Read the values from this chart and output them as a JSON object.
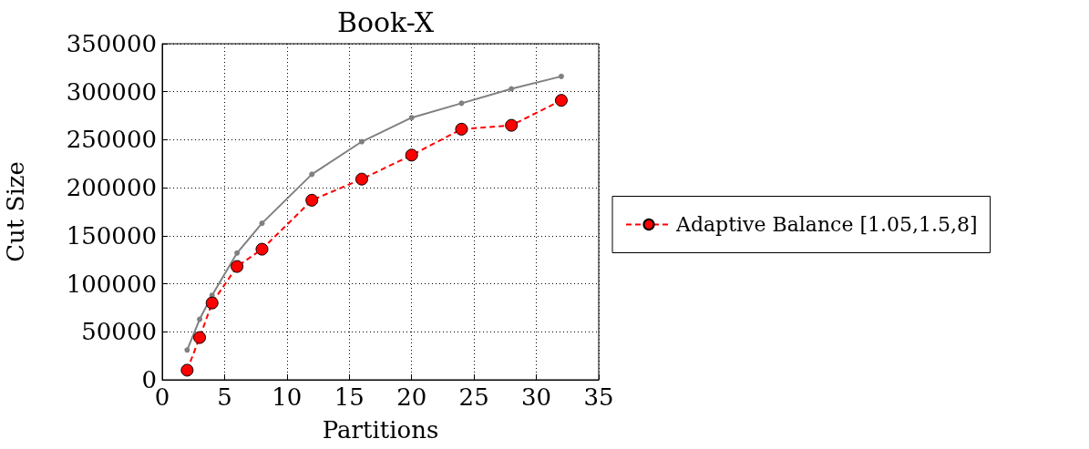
{
  "chart_data": {
    "type": "line",
    "title": "Book-X",
    "xlabel": "Partitions",
    "ylabel": "Cut Size",
    "x": [
      2,
      3,
      4,
      6,
      8,
      12,
      16,
      20,
      24,
      28,
      32
    ],
    "series": [
      {
        "color": "#808080",
        "marker": "circle",
        "line_style": "solid",
        "values": [
          31000,
          63000,
          88000,
          132000,
          163000,
          214000,
          248000,
          273000,
          288000,
          303000,
          316000
        ]
      },
      {
        "name": "Adaptive Balance [1.05,1.5,8]",
        "color": "#ff0000",
        "marker": "circle",
        "line_style": "dashed",
        "values": [
          10000,
          44000,
          80000,
          118000,
          136000,
          187000,
          209000,
          234000,
          261000,
          265000,
          291000
        ]
      }
    ],
    "xlim": [
      0,
      35
    ],
    "xticks": [
      0,
      5,
      10,
      15,
      20,
      25,
      30,
      35
    ],
    "ylim": [
      0,
      350000
    ],
    "yticks": [
      0,
      50000,
      100000,
      150000,
      200000,
      250000,
      300000,
      350000
    ],
    "grid": true,
    "legend": "right"
  }
}
